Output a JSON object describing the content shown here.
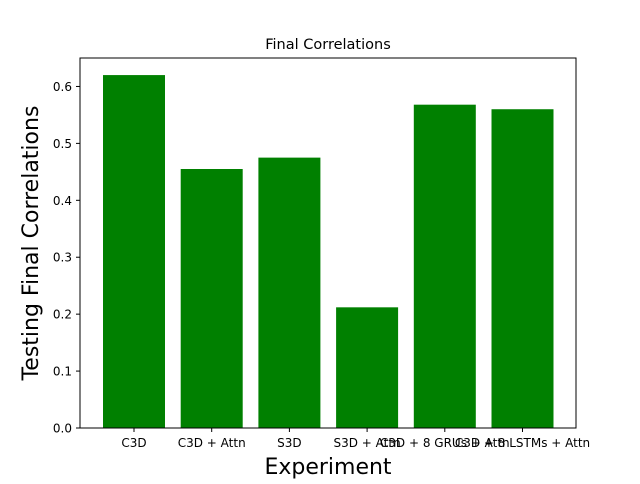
{
  "chart_data": {
    "type": "bar",
    "title": "Final Correlations",
    "xlabel": "Experiment",
    "ylabel": "Testing Final Correlations",
    "categories": [
      "C3D",
      "C3D + Attn",
      "S3D",
      "S3D + Attn",
      "C3D + 8 GRUs + Attn",
      "C3D + 8 LSTMs + Attn"
    ],
    "values": [
      0.62,
      0.455,
      0.475,
      0.212,
      0.568,
      0.56
    ],
    "ylim": [
      0,
      0.65
    ],
    "yticks": [
      "0.0",
      "0.1",
      "0.2",
      "0.3",
      "0.4",
      "0.5",
      "0.6"
    ],
    "grid": false,
    "bar_color": "#008000"
  }
}
